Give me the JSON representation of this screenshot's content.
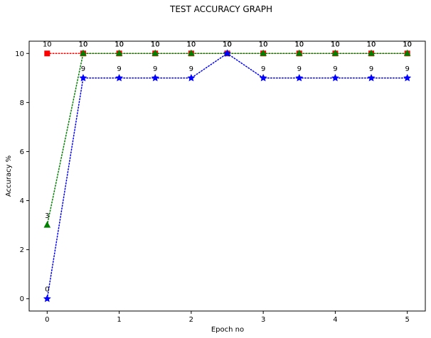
{
  "chart_data": {
    "type": "line",
    "title": "TEST ACCURACY GRAPH",
    "xlabel": "Epoch no",
    "ylabel": "Accuracy %",
    "xlim": [
      -0.25,
      5.25
    ],
    "ylim": [
      -0.5,
      10.5
    ],
    "x_ticks": [
      0,
      1,
      2,
      3,
      4,
      5
    ],
    "y_ticks": [
      0,
      2,
      4,
      6,
      8,
      10
    ],
    "grid": false,
    "series": [
      {
        "color": "#ff0000",
        "marker": "square",
        "x": [
          0,
          0.5,
          1,
          1.5,
          2,
          2.5,
          3,
          3.5,
          4,
          4.5,
          5
        ],
        "y": [
          10,
          10,
          10,
          10,
          10,
          10,
          10,
          10,
          10,
          10,
          10
        ],
        "labels": [
          "10",
          "10",
          "10",
          "10",
          "10",
          "10",
          "10",
          "10",
          "10",
          "10",
          "10"
        ]
      },
      {
        "color": "#008000",
        "marker": "triangle",
        "x": [
          0,
          0.5,
          1,
          1.5,
          2,
          2.5,
          3,
          3.5,
          4,
          4.5,
          5
        ],
        "y": [
          3,
          10,
          10,
          10,
          10,
          10,
          10,
          10,
          10,
          10,
          10
        ],
        "labels": [
          "3",
          "10",
          "10",
          "10",
          "10",
          "10",
          "10",
          "10",
          "10",
          "10",
          "10"
        ]
      },
      {
        "color": "#0000ff",
        "marker": "star",
        "x": [
          0,
          0.5,
          1,
          1.5,
          2,
          2.5,
          3,
          3.5,
          4,
          4.5,
          5
        ],
        "y": [
          0,
          9,
          9,
          9,
          9,
          10,
          9,
          9,
          9,
          9,
          9
        ],
        "labels": [
          "0",
          "9",
          "9",
          "9",
          "9",
          "10",
          "9",
          "9",
          "9",
          "9",
          "9"
        ]
      }
    ]
  }
}
